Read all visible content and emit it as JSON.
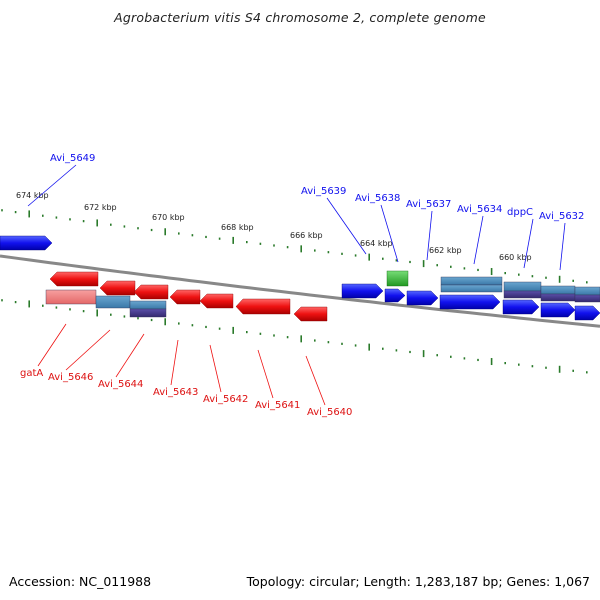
{
  "title": "Agrobacterium vitis S4 chromosome 2, complete genome",
  "footer": {
    "accession": "Accession: NC_011988",
    "topology": "Topology: circular; Length: 1,283,187 bp; Genes: 1,067"
  },
  "colors": {
    "forward_gene": "#1111ee",
    "reverse_gene": "#ee1111",
    "rrna_like": "#33bb33",
    "cds_band": "#4488bb",
    "cds_band_dark": "#443a8c",
    "backbone": "#888888",
    "tick": "#2a7a2a"
  },
  "scale_labels": [
    "674 kbp",
    "672 kbp",
    "670 kbp",
    "668 kbp",
    "666 kbp",
    "664 kbp",
    "662 kbp",
    "660 kbp"
  ],
  "forward_labels": [
    "Avi_5649",
    "Avi_5639",
    "Avi_5638",
    "Avi_5637",
    "Avi_5634",
    "dppC",
    "Avi_5632"
  ],
  "reverse_labels": [
    "gatA",
    "Avi_5646",
    "Avi_5644",
    "Avi_5643",
    "Avi_5642",
    "Avi_5641",
    "Avi_5640"
  ]
}
